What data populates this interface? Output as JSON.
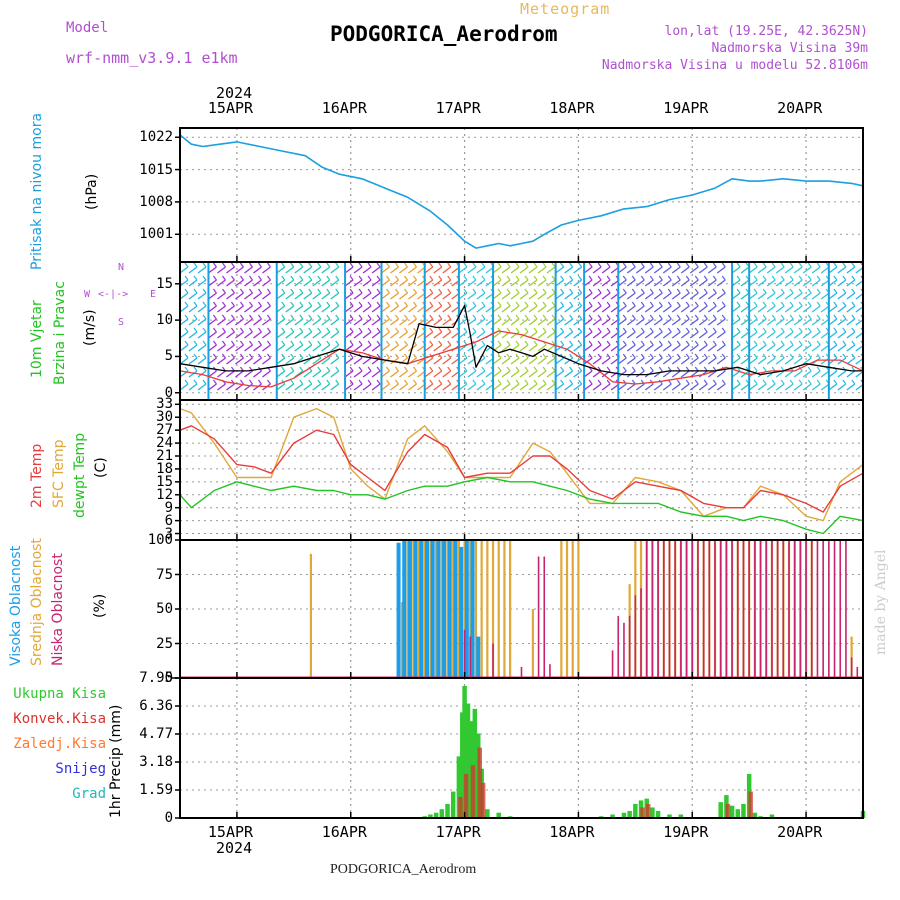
{
  "header": {
    "subtitle": "Meteogram",
    "title": "PODGORICA_Aerodrom",
    "model_label": "Model",
    "model_name": "wrf-nmm_v3.9.1 e1km",
    "coords": "lon,lat (19.25E, 42.3625N)",
    "elevation": "Nadmorska Visina 39m",
    "model_elevation": "Nadmorska Visina u modelu 52.8106m"
  },
  "footer": {
    "station": "PODGORICA_Aerodrom",
    "credit": "made by Angel"
  },
  "time_axis": {
    "year": "2024",
    "labels": [
      "15APR",
      "16APR",
      "17APR",
      "18APR",
      "19APR",
      "20APR"
    ],
    "start_day": 14.5,
    "end_day": 20.5
  },
  "panels": {
    "pressure": {
      "labels": [
        "Pritisak na nivou mora",
        "(hPa)"
      ],
      "ticks": [
        "1001",
        "1008",
        "1015",
        "1022"
      ]
    },
    "wind": {
      "labels": [
        "10m Vjetar",
        "Brzina i Pravac",
        "(m/s)"
      ],
      "ticks": [
        "0",
        "5",
        "10",
        "15"
      ],
      "compass": {
        "n": "N",
        "w": "W",
        "e": "E",
        "s": "S"
      }
    },
    "temperature": {
      "labels": [
        "2m Temp",
        "SFC Temp",
        "dewpt Temp",
        "(C)"
      ],
      "ticks": [
        "3",
        "6",
        "9",
        "12",
        "15",
        "18",
        "21",
        "24",
        "27",
        "30",
        "33"
      ]
    },
    "clouds": {
      "labels": [
        "Visoka Oblacnost",
        "Srednja Oblacnost",
        "Niska Oblacnost",
        "(%)"
      ],
      "ticks": [
        "0",
        "25",
        "50",
        "75",
        "100"
      ]
    },
    "precip": {
      "legend": [
        "Ukupna Kisa",
        "Konvek.Kisa",
        "Zaledj.Kisa",
        "Snijeg",
        "Grad"
      ],
      "axis_label": "1hr Precip (mm)",
      "ticks": [
        "0",
        "1.59",
        "3.18",
        "4.77",
        "6.36",
        "7.95"
      ]
    }
  },
  "colors": {
    "pressure": "#1aa0e0",
    "temp2m": "#e83c3c",
    "sfc": "#e0a838",
    "dewpt": "#22c422",
    "wind_speed": "#000000",
    "cloud_high": "#1a9ee8",
    "cloud_mid": "#e0a838",
    "cloud_low": "#c8246e",
    "precip_total": "#32c832",
    "precip_conv": "#d8342c",
    "precip_frozen": "#ff7a30",
    "snow": "#3030dc",
    "hail": "#20b8b8",
    "subtitle": "#e8b85c",
    "header_violet": "#b050d0"
  },
  "chart_data": [
    {
      "type": "line",
      "title": "",
      "ylabel": "Pritisak na nivou mora (hPa)",
      "ylim": [
        995,
        1024
      ],
      "series": [
        {
          "name": "Pritisak na nivou mora",
          "x": [
            14.5,
            14.6,
            14.7,
            14.85,
            15.0,
            15.2,
            15.4,
            15.6,
            15.75,
            15.9,
            16.1,
            16.3,
            16.5,
            16.7,
            16.85,
            17.0,
            17.1,
            17.2,
            17.3,
            17.4,
            17.5,
            17.6,
            17.7,
            17.85,
            18.0,
            18.2,
            18.4,
            18.6,
            18.8,
            19.0,
            19.2,
            19.35,
            19.5,
            19.6,
            19.8,
            20.0,
            20.2,
            20.4,
            20.5
          ],
          "y": [
            1022.5,
            1020.5,
            1020,
            1020.5,
            1021,
            1020,
            1019,
            1018,
            1015.5,
            1014,
            1013,
            1011,
            1009,
            1006,
            1003,
            999.5,
            998,
            998.5,
            999,
            998.5,
            999,
            999.5,
            1001,
            1003,
            1004,
            1005,
            1006.5,
            1007,
            1008.5,
            1009.5,
            1011,
            1013,
            1012.5,
            1012.5,
            1013,
            1012.5,
            1012.5,
            1012,
            1011.5
          ]
        }
      ]
    },
    {
      "type": "line",
      "title": "",
      "ylabel": "10m Vjetar Brzina i Pravac (m/s)",
      "ylim": [
        -1,
        18
      ],
      "series": [
        {
          "name": "2m Temp",
          "x": [
            14.5,
            14.7,
            14.9,
            15.1,
            15.3,
            15.5,
            15.7,
            15.9,
            16.1,
            16.3,
            16.5,
            16.7,
            16.9,
            17.1,
            17.3,
            17.5,
            17.7,
            17.9,
            18.1,
            18.3,
            18.5,
            18.7,
            18.9,
            19.1,
            19.3,
            19.5,
            19.7,
            19.9,
            20.1,
            20.3,
            20.5
          ],
          "y": [
            3,
            2.5,
            1.5,
            1,
            0.8,
            2,
            4,
            6,
            5.5,
            4.5,
            4,
            5,
            6,
            7,
            8.5,
            8,
            7,
            6,
            4,
            1.5,
            1.2,
            1.5,
            2,
            2.5,
            3.5,
            2.5,
            3,
            3,
            4.5,
            4.5,
            3
          ]
        },
        {
          "name": "Brzina",
          "x": [
            14.5,
            14.7,
            14.9,
            15.1,
            15.3,
            15.5,
            15.7,
            15.9,
            16.1,
            16.3,
            16.5,
            16.6,
            16.75,
            16.9,
            17.0,
            17.05,
            17.1,
            17.2,
            17.3,
            17.4,
            17.5,
            17.6,
            17.7,
            17.85,
            18.0,
            18.2,
            18.4,
            18.6,
            18.8,
            19.0,
            19.2,
            19.4,
            19.6,
            19.8,
            20.0,
            20.2,
            20.4,
            20.5
          ],
          "y": [
            4,
            3.5,
            3,
            3,
            3.5,
            4,
            5,
            6,
            5,
            4.5,
            4,
            9.5,
            9,
            9,
            12,
            8,
            3.5,
            6.5,
            5.5,
            6,
            5.5,
            5,
            6,
            5,
            4,
            3,
            2.5,
            2.5,
            3,
            3,
            3,
            3.5,
            2.5,
            3,
            4,
            3.5,
            3,
            3
          ]
        }
      ]
    },
    {
      "type": "line",
      "title": "",
      "ylabel": "(C)",
      "ylim": [
        1.5,
        34
      ],
      "series": [
        {
          "name": "2m Temp",
          "x": [
            14.5,
            14.6,
            14.8,
            15.0,
            15.15,
            15.3,
            15.5,
            15.7,
            15.85,
            16.0,
            16.15,
            16.3,
            16.5,
            16.65,
            16.85,
            17.0,
            17.2,
            17.4,
            17.6,
            17.75,
            17.9,
            18.1,
            18.3,
            18.5,
            18.7,
            18.9,
            19.1,
            19.3,
            19.45,
            19.6,
            19.8,
            20.0,
            20.15,
            20.3,
            20.5
          ],
          "y": [
            27,
            28,
            25,
            19,
            18.5,
            17,
            24,
            27,
            26,
            19,
            16,
            13,
            22,
            26,
            23,
            16,
            17,
            17,
            21,
            21,
            18,
            13,
            11,
            15,
            14,
            13,
            10,
            9,
            9,
            13,
            12,
            10,
            8,
            14,
            17
          ]
        },
        {
          "name": "SFC Temp",
          "x": [
            14.5,
            14.6,
            14.8,
            15.0,
            15.15,
            15.3,
            15.5,
            15.7,
            15.85,
            16.0,
            16.15,
            16.3,
            16.5,
            16.65,
            16.85,
            17.0,
            17.2,
            17.4,
            17.6,
            17.75,
            17.9,
            18.1,
            18.3,
            18.5,
            18.7,
            18.9,
            19.1,
            19.3,
            19.45,
            19.6,
            19.8,
            20.0,
            20.15,
            20.3,
            20.5
          ],
          "y": [
            32,
            31,
            24,
            16,
            16,
            16,
            30,
            32,
            30,
            18,
            14,
            11,
            25,
            28,
            22,
            16,
            16,
            16,
            24,
            22,
            17,
            10,
            10,
            16,
            15,
            13,
            7,
            9,
            9,
            14,
            12,
            7,
            6,
            15,
            19
          ]
        },
        {
          "name": "dewpt Temp",
          "x": [
            14.5,
            14.6,
            14.8,
            15.0,
            15.15,
            15.3,
            15.5,
            15.7,
            15.85,
            16.0,
            16.15,
            16.3,
            16.5,
            16.65,
            16.85,
            17.0,
            17.2,
            17.4,
            17.6,
            17.75,
            17.9,
            18.1,
            18.3,
            18.5,
            18.7,
            18.9,
            19.1,
            19.3,
            19.45,
            19.6,
            19.8,
            20.0,
            20.15,
            20.3,
            20.5
          ],
          "y": [
            12,
            9,
            13,
            15,
            14,
            13,
            14,
            13,
            13,
            12,
            12,
            11,
            13,
            14,
            14,
            15,
            16,
            15,
            15,
            14,
            13,
            11,
            10,
            10,
            10,
            8,
            7,
            7,
            6,
            7,
            6,
            4,
            3,
            7,
            6
          ]
        }
      ]
    },
    {
      "type": "bar",
      "title": "",
      "ylabel": "(%)",
      "ylim": [
        0,
        100
      ],
      "series": [
        {
          "name": "Visoka Oblacnost",
          "x": [
            16.42,
            16.47,
            16.52,
            16.57,
            16.62,
            16.67,
            16.72,
            16.77,
            16.82,
            16.87,
            16.92,
            16.97,
            17.02,
            17.07,
            17.12
          ],
          "y": [
            98,
            100,
            100,
            100,
            100,
            100,
            100,
            100,
            100,
            100,
            100,
            95,
            100,
            100,
            30
          ]
        },
        {
          "name": "Srednja Oblacnost",
          "x": [
            15.65,
            16.45,
            16.5,
            16.55,
            16.6,
            16.65,
            16.7,
            16.75,
            16.8,
            16.85,
            16.9,
            16.95,
            17.0,
            17.05,
            17.1,
            17.15,
            17.2,
            17.25,
            17.3,
            17.35,
            17.4,
            17.6,
            17.85,
            17.9,
            17.95,
            18.0,
            18.45,
            18.5,
            18.55,
            18.6,
            18.65,
            18.7,
            18.75,
            18.8,
            18.85,
            18.9,
            18.95,
            19.0,
            19.05,
            19.1,
            19.15,
            19.2,
            19.25,
            19.3,
            19.35,
            19.4,
            19.45,
            19.5,
            19.55,
            19.6,
            19.65,
            19.7,
            19.75,
            19.8,
            19.85,
            19.9,
            19.95,
            20.0,
            20.05,
            20.4
          ],
          "y": [
            90,
            55,
            100,
            100,
            100,
            100,
            100,
            100,
            100,
            100,
            100,
            100,
            100,
            100,
            100,
            100,
            100,
            100,
            100,
            100,
            100,
            50,
            100,
            100,
            100,
            100,
            68,
            100,
            100,
            100,
            100,
            100,
            100,
            100,
            100,
            100,
            100,
            100,
            100,
            100,
            100,
            100,
            100,
            100,
            100,
            100,
            100,
            100,
            100,
            100,
            100,
            100,
            100,
            100,
            100,
            100,
            100,
            100,
            100,
            30
          ]
        },
        {
          "name": "Niska Oblacnost",
          "x": [
            17.0,
            17.05,
            17.25,
            17.5,
            17.65,
            17.7,
            17.75,
            18.3,
            18.35,
            18.4,
            18.45,
            18.5,
            18.55,
            18.6,
            18.65,
            18.7,
            18.75,
            18.8,
            18.85,
            18.9,
            18.95,
            19.0,
            19.05,
            19.1,
            19.15,
            19.2,
            19.25,
            19.3,
            19.35,
            19.4,
            19.45,
            19.5,
            19.55,
            19.6,
            19.65,
            19.7,
            19.75,
            19.8,
            19.85,
            19.9,
            19.95,
            20.0,
            20.05,
            20.1,
            20.15,
            20.2,
            20.25,
            20.3,
            20.35,
            20.4,
            20.45
          ],
          "y": [
            35,
            30,
            25,
            8,
            88,
            88,
            10,
            20,
            45,
            40,
            45,
            60,
            65,
            100,
            100,
            100,
            100,
            100,
            100,
            100,
            100,
            100,
            100,
            100,
            100,
            100,
            100,
            100,
            100,
            100,
            100,
            100,
            100,
            100,
            100,
            100,
            100,
            100,
            100,
            100,
            100,
            100,
            100,
            100,
            100,
            100,
            100,
            100,
            100,
            15,
            8
          ]
        }
      ]
    },
    {
      "type": "bar",
      "title": "",
      "ylabel": "1hr Precip (mm)",
      "ylim": [
        0,
        7.95
      ],
      "series": [
        {
          "name": "Ukupna Kisa",
          "x": [
            16.65,
            16.7,
            16.75,
            16.8,
            16.85,
            16.9,
            16.95,
            16.98,
            17.0,
            17.03,
            17.06,
            17.09,
            17.12,
            17.15,
            17.2,
            17.3,
            17.4,
            18.2,
            18.3,
            18.4,
            18.45,
            18.5,
            18.55,
            18.6,
            18.65,
            18.7,
            18.8,
            18.9,
            19.25,
            19.3,
            19.35,
            19.4,
            19.45,
            19.5,
            19.55,
            19.6,
            19.7,
            20.5
          ],
          "y": [
            0.1,
            0.2,
            0.3,
            0.5,
            0.8,
            1.5,
            3.5,
            6.0,
            7.5,
            6.5,
            5.5,
            6.2,
            4.8,
            2.8,
            0.5,
            0.3,
            0.1,
            0.1,
            0.2,
            0.3,
            0.4,
            0.8,
            1.0,
            1.1,
            0.6,
            0.4,
            0.2,
            0.2,
            0.9,
            1.3,
            0.7,
            0.5,
            0.8,
            2.5,
            0.3,
            0.1,
            0.2,
            0.4
          ]
        },
        {
          "name": "Konvek.Kisa",
          "x": [
            16.95,
            17.0,
            17.06,
            17.12,
            17.15,
            18.55,
            18.6,
            19.3,
            19.5
          ],
          "y": [
            1.2,
            2.5,
            3.0,
            4.0,
            2.0,
            0.6,
            0.8,
            0.8,
            1.5
          ]
        }
      ]
    }
  ]
}
